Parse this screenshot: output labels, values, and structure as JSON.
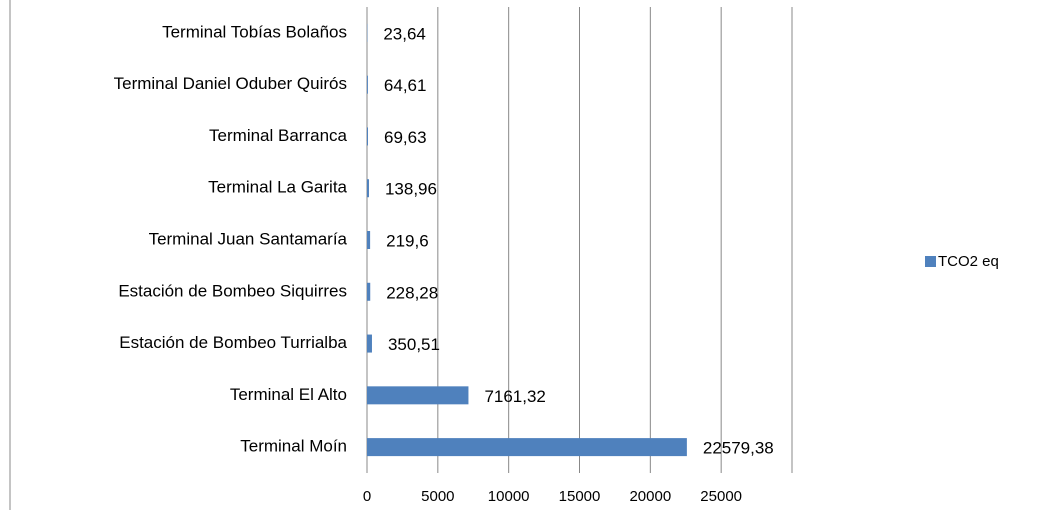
{
  "chart_data": {
    "type": "bar",
    "orientation": "horizontal",
    "categories": [
      "Terminal Tobías Bolaños",
      "Terminal Daniel Oduber Quirós",
      "Terminal Barranca",
      "Terminal La Garita",
      "Terminal Juan Santamaría",
      "Estación de Bombeo Siquirres",
      "Estación de Bombeo Turrialba",
      "Terminal El Alto",
      "Terminal Moín"
    ],
    "series": [
      {
        "name": "TCO2 eq",
        "color": "#4f81bd",
        "values": [
          23.64,
          64.61,
          69.63,
          138.96,
          219.6,
          228.28,
          350.51,
          7161.32,
          22579.38
        ],
        "value_labels": [
          "23,64",
          "64,61",
          "69,63",
          "138,96",
          "219,6",
          "228,28",
          "350,51",
          "7161,32",
          "22579,38"
        ]
      }
    ],
    "xlim": [
      0,
      30000
    ],
    "xticks": [
      0,
      5000,
      10000,
      15000,
      20000,
      25000
    ],
    "grid": true,
    "legend": "right"
  }
}
